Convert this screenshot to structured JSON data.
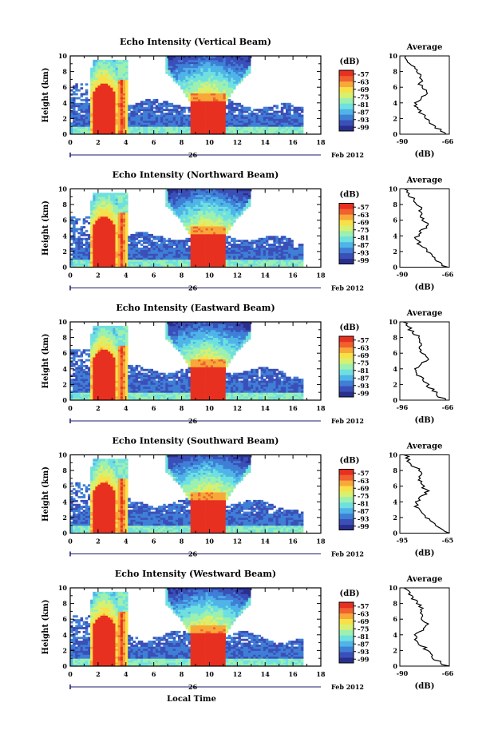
{
  "chart_data": {
    "type": "heatmap",
    "panels": [
      {
        "title": "Echo Intensity (Vertical Beam)",
        "avg_x_ticks": [
          "-90",
          "-66"
        ]
      },
      {
        "title": "Echo Intensity (Northward Beam)",
        "avg_x_ticks": [
          "-90",
          "-66"
        ]
      },
      {
        "title": "Echo Intensity (Eastward Beam)",
        "avg_x_ticks": [
          "-96",
          "-66"
        ]
      },
      {
        "title": "Echo Intensity (Southward Beam)",
        "avg_x_ticks": [
          "-95",
          "-65"
        ]
      },
      {
        "title": "Echo Intensity (Westward Beam)",
        "avg_x_ticks": [
          "-90",
          "-66"
        ]
      }
    ],
    "ylabel": "Height (km)",
    "y_range": [
      0,
      10
    ],
    "y_ticks": [
      "0",
      "2",
      "4",
      "6",
      "8",
      "10"
    ],
    "x_range": [
      0,
      18
    ],
    "x_ticks": [
      "0",
      "2",
      "4",
      "6",
      "8",
      "10",
      "12",
      "14",
      "16",
      "18"
    ],
    "date_day": "26",
    "date_suffix": "Feb 2012",
    "xlabel": "Local Time",
    "colorbar": {
      "label": "(dB)",
      "ticks": [
        "-57",
        "-63",
        "-69",
        "-75",
        "-81",
        "-87",
        "-93",
        "-99"
      ],
      "range": [
        -102,
        -54
      ],
      "colors": [
        "#2a2f8f",
        "#3b4fb8",
        "#3f7fd6",
        "#4fb4e8",
        "#6fe0e0",
        "#9cf0b0",
        "#d8f070",
        "#f8e048",
        "#f8a838",
        "#f06030",
        "#e83020"
      ]
    },
    "average": {
      "title": "Average",
      "xlabel": "(dB)",
      "y_ticks": [
        "0",
        "2",
        "4",
        "6",
        "8",
        "10"
      ]
    }
  }
}
